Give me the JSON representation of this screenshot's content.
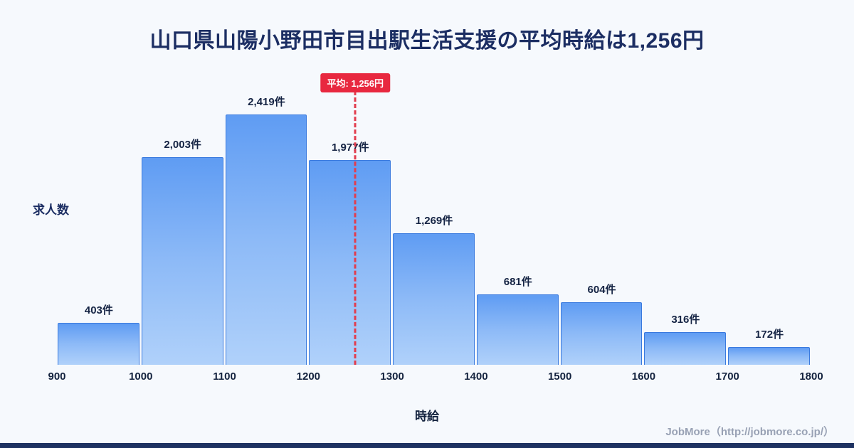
{
  "title": "山口県山陽小野田市目出駅生活支援の平均時給は1,256円",
  "chart_data": {
    "type": "bar",
    "title": "山口県山陽小野田市目出駅生活支援の平均時給は1,256円",
    "xlabel": "時給",
    "ylabel": "求人数",
    "x_range": [
      900,
      1800
    ],
    "bin_width": 100,
    "x_ticks": [
      "900",
      "1000",
      "1100",
      "1200",
      "1300",
      "1400",
      "1500",
      "1600",
      "1700",
      "1800"
    ],
    "values": [
      403,
      2003,
      2419,
      1977,
      1269,
      681,
      604,
      316,
      172
    ],
    "value_labels": [
      "403件",
      "2,003件",
      "2,419件",
      "1,977件",
      "1,269件",
      "681件",
      "604件",
      "316件",
      "172件"
    ],
    "average": 1256,
    "average_label": "平均: 1,256円",
    "ylim": [
      0,
      2700
    ],
    "grid": false,
    "legend": "none"
  },
  "footer": {
    "credit": "JobMore（http://jobmore.co.jp/）"
  },
  "colors": {
    "background": "#f6f9fd",
    "title_text": "#1c2e63",
    "bar_fill_top": "#5f9cf3",
    "bar_fill_bottom": "#b0d1fa",
    "bar_border": "#3a7ade",
    "average_line": "#e23d4e",
    "average_badge_bg": "#e8283f",
    "average_badge_text": "#ffffff",
    "axis_text": "#14233f",
    "credit_text": "#98a1b4",
    "footer_bar": "#1e3261"
  }
}
